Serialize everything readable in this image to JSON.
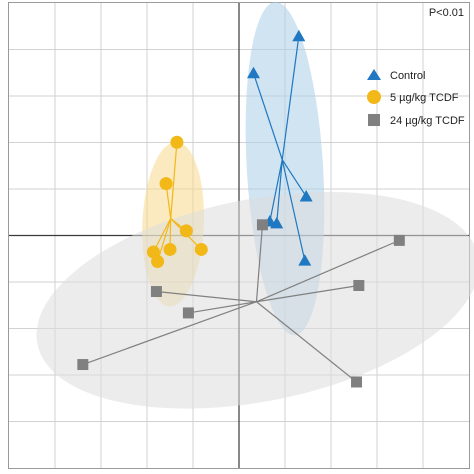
{
  "chart_data": {
    "type": "scatter",
    "annotation": "P<0.01",
    "grid": true,
    "legend_position": "top-right",
    "axis_ticks_labeled": false,
    "xlim": [
      -1.0,
      1.0
    ],
    "ylim": [
      -1.0,
      1.0
    ],
    "colors": {
      "Control": "#1f78c1",
      "5 µg/kg TCDF": "#f2b818",
      "24 µg/kg TCDF": "#808080"
    },
    "series": [
      {
        "name": "Control",
        "marker": "triangle",
        "color": "#1f78c1",
        "ellipse_fill": "#a9cde8",
        "centroid": [
          0.188,
          0.326
        ],
        "x": [
          0.26,
          0.063,
          0.292,
          0.164,
          0.286,
          0.134
        ],
        "y": [
          0.857,
          0.698,
          0.168,
          0.052,
          -0.108,
          0.06
        ]
      },
      {
        "name": "5 µg/kg TCDF",
        "marker": "circle",
        "color": "#f2b818",
        "ellipse_fill": "#f7d98a",
        "centroid": [
          -0.297,
          0.073
        ],
        "x": [
          -0.27,
          -0.317,
          -0.229,
          -0.3,
          -0.372,
          -0.354,
          -0.164
        ],
        "y": [
          0.401,
          0.223,
          0.02,
          -0.06,
          -0.071,
          -0.112,
          -0.06
        ]
      },
      {
        "name": "24 µg/kg TCDF",
        "marker": "square",
        "color": "#808080",
        "ellipse_fill": "#dcdcdc",
        "centroid": [
          0.076,
          -0.285
        ],
        "x": [
          0.102,
          0.697,
          0.521,
          -0.359,
          -0.22,
          -0.679,
          0.511
        ],
        "y": [
          0.046,
          -0.021,
          -0.215,
          -0.241,
          -0.333,
          -0.555,
          -0.63
        ]
      }
    ]
  },
  "legend": {
    "items": [
      {
        "label": "Control",
        "marker": "triangle",
        "color": "#1f78c1"
      },
      {
        "label": "5 µg/kg TCDF",
        "marker": "circle",
        "color": "#f2b818"
      },
      {
        "label": "24 µg/kg TCDF",
        "marker": "square",
        "color": "#808080"
      }
    ]
  }
}
